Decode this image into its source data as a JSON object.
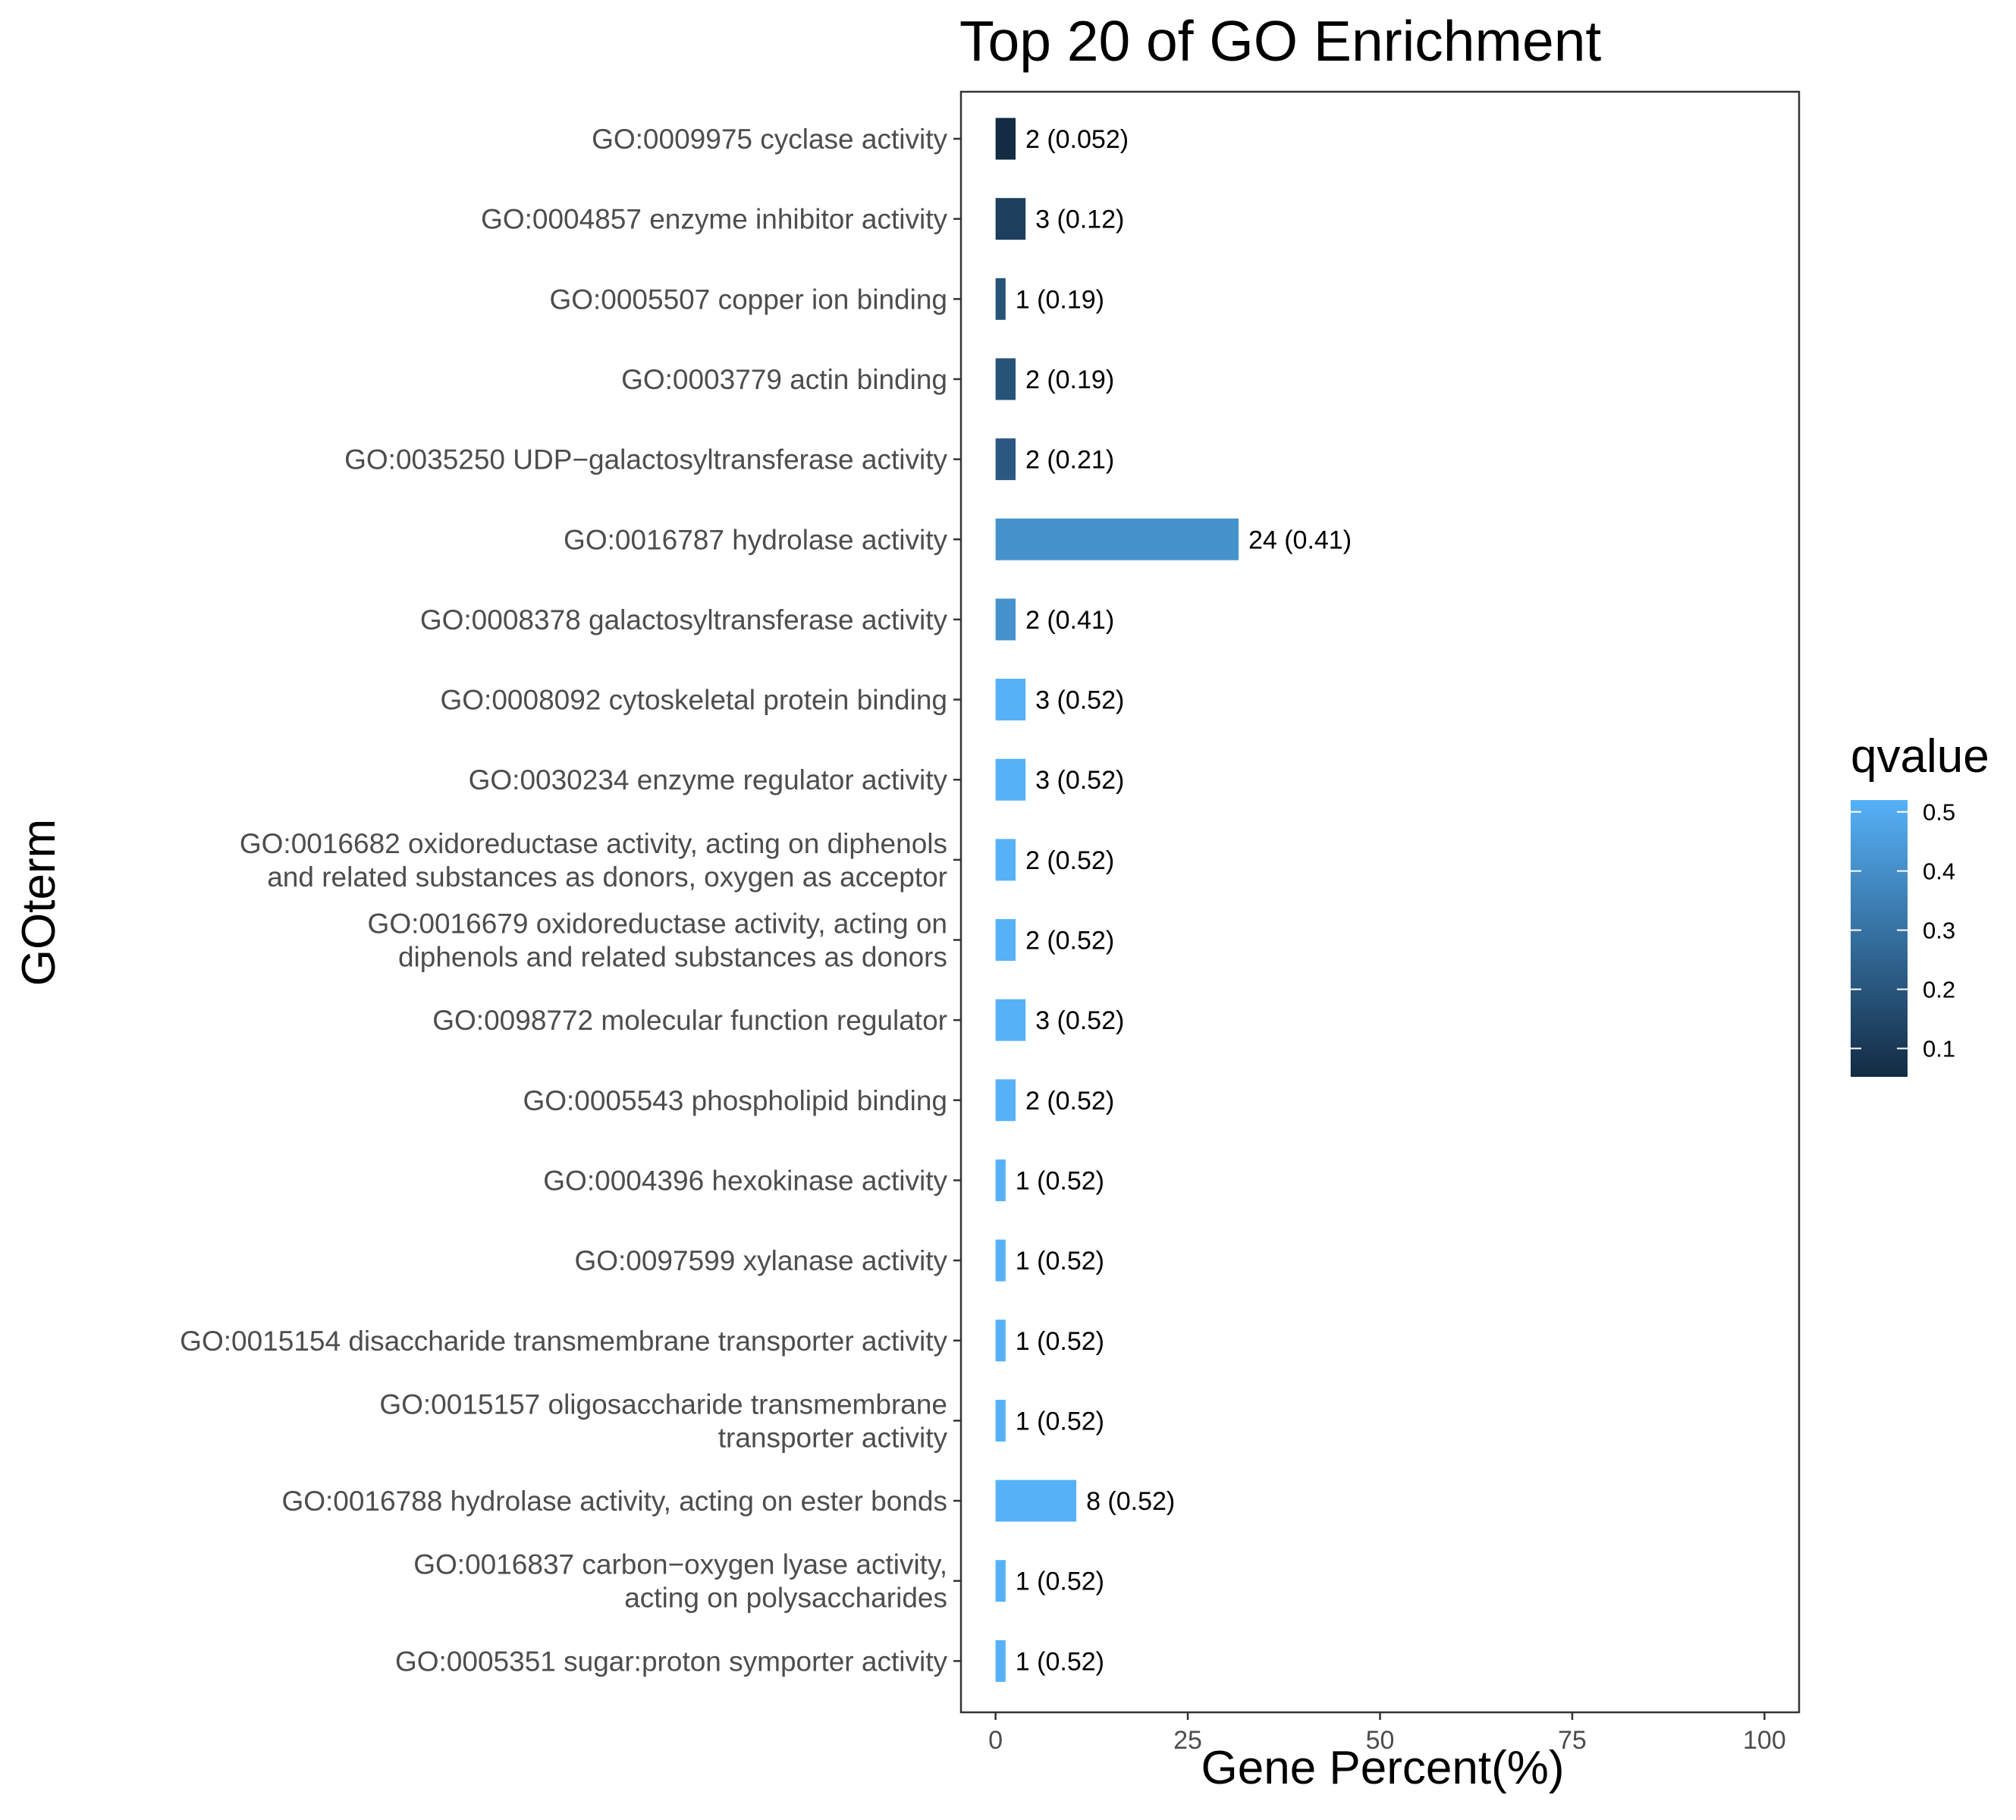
{
  "chart_data": {
    "type": "bar",
    "orientation": "horizontal",
    "title": "Top 20 of GO Enrichment",
    "xlabel": "Gene Percent(%)",
    "ylabel": "GOterm",
    "xlim": [
      -4.5,
      104.5
    ],
    "xticks": [
      0,
      25,
      50,
      75,
      100
    ],
    "grid": false,
    "legend": {
      "title": "qvalue",
      "placement": "right",
      "range": [
        0.052,
        0.52
      ],
      "ticks": [
        0.1,
        0.2,
        0.3,
        0.4,
        0.5
      ],
      "low_color": "#132B43",
      "high_color": "#56B1F7"
    },
    "categories": [
      [
        "GO:0009975 cyclase activity"
      ],
      [
        "GO:0004857 enzyme inhibitor activity"
      ],
      [
        "GO:0005507 copper ion binding"
      ],
      [
        "GO:0003779 actin binding"
      ],
      [
        "GO:0035250 UDP−galactosyltransferase activity"
      ],
      [
        "GO:0016787 hydrolase activity"
      ],
      [
        "GO:0008378 galactosyltransferase activity"
      ],
      [
        "GO:0008092 cytoskeletal protein binding"
      ],
      [
        "GO:0030234 enzyme regulator activity"
      ],
      [
        "GO:0016682 oxidoreductase activity, acting on diphenols",
        "and related substances as donors, oxygen as acceptor"
      ],
      [
        "GO:0016679 oxidoreductase activity, acting on",
        "diphenols and related substances as donors"
      ],
      [
        "GO:0098772 molecular function regulator"
      ],
      [
        "GO:0005543 phospholipid binding"
      ],
      [
        "GO:0004396 hexokinase activity"
      ],
      [
        "GO:0097599 xylanase activity"
      ],
      [
        "GO:0015154 disaccharide transmembrane transporter activity"
      ],
      [
        "GO:0015157 oligosaccharide transmembrane",
        "transporter activity"
      ],
      [
        "GO:0016788 hydrolase activity, acting on ester bonds"
      ],
      [
        "GO:0016837 carbon−oxygen lyase activity,",
        "acting on polysaccharides"
      ],
      [
        "GO:0005351 sugar:proton symporter activity"
      ]
    ],
    "gene_percent": [
      2.6,
      3.9,
      1.3,
      2.6,
      2.6,
      31.6,
      2.6,
      3.9,
      3.9,
      2.6,
      2.6,
      3.9,
      2.6,
      1.3,
      1.3,
      1.3,
      1.3,
      10.5,
      1.3,
      1.3
    ],
    "counts": [
      2,
      3,
      1,
      2,
      2,
      24,
      2,
      3,
      3,
      2,
      2,
      3,
      2,
      1,
      1,
      1,
      1,
      8,
      1,
      1
    ],
    "qvalues": [
      0.052,
      0.12,
      0.19,
      0.19,
      0.21,
      0.41,
      0.41,
      0.52,
      0.52,
      0.52,
      0.52,
      0.52,
      0.52,
      0.52,
      0.52,
      0.52,
      0.52,
      0.52,
      0.52,
      0.52
    ],
    "bar_labels": [
      "2 (0.052)",
      "3 (0.12)",
      "1 (0.19)",
      "2 (0.19)",
      "2 (0.21)",
      "24 (0.41)",
      "2 (0.41)",
      "3 (0.52)",
      "3 (0.52)",
      "2 (0.52)",
      "2 (0.52)",
      "3 (0.52)",
      "2 (0.52)",
      "1 (0.52)",
      "1 (0.52)",
      "1 (0.52)",
      "1 (0.52)",
      "8 (0.52)",
      "1 (0.52)",
      "1 (0.52)"
    ]
  }
}
